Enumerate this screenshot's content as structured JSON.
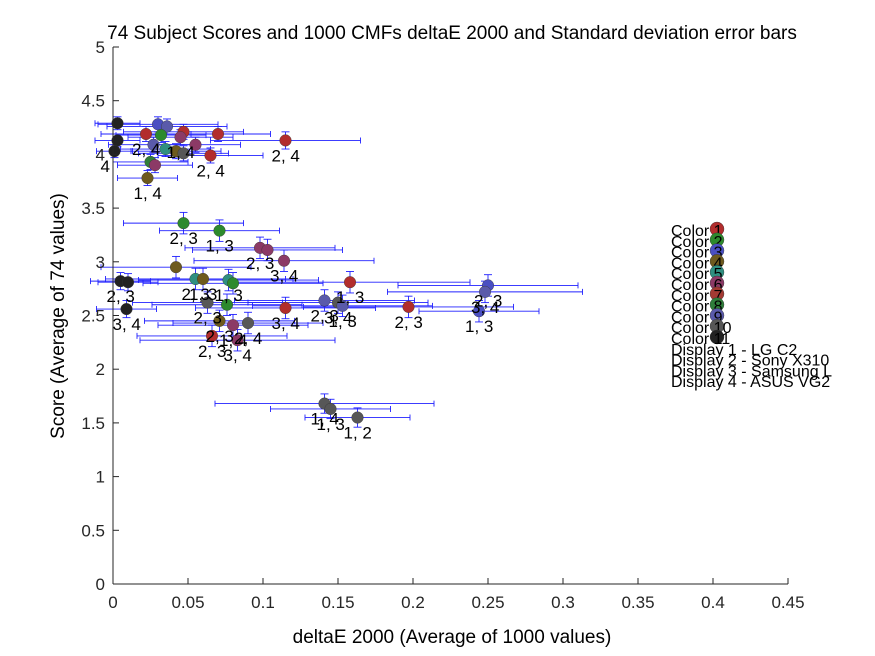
{
  "chart_data": {
    "type": "scatter",
    "title": "74 Subject Scores and 1000 CMFs deltaE 2000 and Standard deviation error bars",
    "xlabel": "deltaE 2000 (Average of 1000 values)",
    "ylabel": "Score (Average of 74 values)",
    "xlim": [
      0,
      0.45
    ],
    "ylim": [
      0,
      5
    ],
    "xticks": [
      "0",
      "0.05",
      "0.1",
      "0.15",
      "0.2",
      "0.25",
      "0.3",
      "0.35",
      "0.4",
      "0.45"
    ],
    "yticks": [
      "0",
      "0.5",
      "1",
      "1.5",
      "2",
      "2.5",
      "3",
      "3.5",
      "4",
      "4.5",
      "5"
    ],
    "grid": false,
    "legend_position": "right",
    "legend_entries": [
      {
        "label": "Color 1",
        "color": "#B22D2D"
      },
      {
        "label": "Color 2",
        "color": "#2D8A2D"
      },
      {
        "label": "Color 3",
        "color": "#4A4FC2"
      },
      {
        "label": "Color 4",
        "color": "#6E5A1E"
      },
      {
        "label": "Color 5",
        "color": "#2F8F80"
      },
      {
        "label": "Color 6",
        "color": "#8C3A66"
      },
      {
        "label": "Color 7",
        "color": "#A33A33"
      },
      {
        "label": "Color 8",
        "color": "#2F7E3A"
      },
      {
        "label": "Color 9",
        "color": "#5A5AAA"
      },
      {
        "label": "Color 10",
        "color": "#575757"
      },
      {
        "label": "Color 11",
        "color": "#222222"
      },
      {
        "label": "Display 1 - LG C2",
        "color": ""
      },
      {
        "label": "Display 2 - Sony X310",
        "color": ""
      },
      {
        "label": "Display 3 - Samsung L",
        "color": ""
      },
      {
        "label": "Display 4 - ASUS VG2",
        "color": ""
      }
    ],
    "points": [
      {
        "x": 0.022,
        "y": 4.19,
        "xerr": 0.03,
        "yerr": 0.07,
        "color": "#B22D2D",
        "label": "2, 4"
      },
      {
        "x": 0.047,
        "y": 4.21,
        "xerr": 0.04,
        "yerr": 0.07,
        "color": "#B22D2D",
        "label": ""
      },
      {
        "x": 0.07,
        "y": 4.19,
        "xerr": 0.035,
        "yerr": 0.07,
        "color": "#B22D2D",
        "label": ""
      },
      {
        "x": 0.115,
        "y": 4.13,
        "xerr": 0.05,
        "yerr": 0.08,
        "color": "#B22D2D",
        "label": "2, 4"
      },
      {
        "x": 0.065,
        "y": 3.99,
        "xerr": 0.035,
        "yerr": 0.07,
        "color": "#B22D2D",
        "label": "2, 4"
      },
      {
        "x": 0.003,
        "y": 4.29,
        "xerr": 0.015,
        "yerr": 0.06,
        "color": "#222222",
        "label": ""
      },
      {
        "x": 0.003,
        "y": 4.13,
        "xerr": 0.015,
        "yerr": 0.06,
        "color": "#222222",
        "label": ""
      },
      {
        "x": 0.001,
        "y": 4.03,
        "xerr": 0.012,
        "yerr": 0.06,
        "color": "#222222",
        "label": "4"
      },
      {
        "x": 0.03,
        "y": 4.28,
        "xerr": 0.04,
        "yerr": 0.07,
        "color": "#4A4FC2",
        "label": ""
      },
      {
        "x": 0.036,
        "y": 4.26,
        "xerr": 0.04,
        "yerr": 0.07,
        "color": "#5A5AAA",
        "label": ""
      },
      {
        "x": 0.032,
        "y": 4.18,
        "xerr": 0.03,
        "yerr": 0.07,
        "color": "#2D8A2D",
        "label": ""
      },
      {
        "x": 0.045,
        "y": 4.16,
        "xerr": 0.035,
        "yerr": 0.07,
        "color": "#8C3A66",
        "label": "1, 4"
      },
      {
        "x": 0.055,
        "y": 4.09,
        "xerr": 0.03,
        "yerr": 0.07,
        "color": "#8C3A66",
        "label": ""
      },
      {
        "x": 0.027,
        "y": 4.09,
        "xerr": 0.03,
        "yerr": 0.07,
        "color": "#5A5AAA",
        "label": ""
      },
      {
        "x": 0.035,
        "y": 4.05,
        "xerr": 0.03,
        "yerr": 0.07,
        "color": "#2F8F80",
        "label": ""
      },
      {
        "x": 0.042,
        "y": 4.03,
        "xerr": 0.03,
        "yerr": 0.07,
        "color": "#6E5A1E",
        "label": ""
      },
      {
        "x": 0.047,
        "y": 4.01,
        "xerr": 0.03,
        "yerr": 0.07,
        "color": "#575757",
        "label": ""
      },
      {
        "x": 0.025,
        "y": 3.93,
        "xerr": 0.025,
        "yerr": 0.07,
        "color": "#2F7E3A",
        "label": ""
      },
      {
        "x": 0.028,
        "y": 3.9,
        "xerr": 0.025,
        "yerr": 0.07,
        "color": "#8C3A66",
        "label": ""
      },
      {
        "x": 0.023,
        "y": 3.78,
        "xerr": 0.02,
        "yerr": 0.07,
        "color": "#6E5A1E",
        "label": "1, 4"
      },
      {
        "x": 0.047,
        "y": 3.36,
        "xerr": 0.04,
        "yerr": 0.1,
        "color": "#2D8A2D",
        "label": "2, 3"
      },
      {
        "x": 0.071,
        "y": 3.29,
        "xerr": 0.04,
        "yerr": 0.1,
        "color": "#2D8A2D",
        "label": "1, 3"
      },
      {
        "x": 0.098,
        "y": 3.13,
        "xerr": 0.05,
        "yerr": 0.1,
        "color": "#8C3A66",
        "label": "2, 3"
      },
      {
        "x": 0.103,
        "y": 3.11,
        "xerr": 0.05,
        "yerr": 0.1,
        "color": "#8C3A66",
        "label": ""
      },
      {
        "x": 0.114,
        "y": 3.01,
        "xerr": 0.06,
        "yerr": 0.1,
        "color": "#8C3A66",
        "label": "3, 4"
      },
      {
        "x": 0.042,
        "y": 2.95,
        "xerr": 0.05,
        "yerr": 0.1,
        "color": "#6E5A1E",
        "label": ""
      },
      {
        "x": 0.005,
        "y": 2.82,
        "xerr": 0.02,
        "yerr": 0.08,
        "color": "#222222",
        "label": "2, 3"
      },
      {
        "x": 0.01,
        "y": 2.81,
        "xerr": 0.02,
        "yerr": 0.08,
        "color": "#222222",
        "label": ""
      },
      {
        "x": 0.055,
        "y": 2.84,
        "xerr": 0.06,
        "yerr": 0.1,
        "color": "#2F8F80",
        "label": "2, 3"
      },
      {
        "x": 0.06,
        "y": 2.84,
        "xerr": 0.06,
        "yerr": 0.1,
        "color": "#6E5A1E",
        "label": "1, 3"
      },
      {
        "x": 0.077,
        "y": 2.83,
        "xerr": 0.06,
        "yerr": 0.1,
        "color": "#2F8F80",
        "label": "1, 3"
      },
      {
        "x": 0.08,
        "y": 2.8,
        "xerr": 0.06,
        "yerr": 0.1,
        "color": "#2D8A2D",
        "label": ""
      },
      {
        "x": 0.158,
        "y": 2.81,
        "xerr": 0.08,
        "yerr": 0.1,
        "color": "#B22D2D",
        "label": "1, 3"
      },
      {
        "x": 0.25,
        "y": 2.78,
        "xerr": 0.06,
        "yerr": 0.1,
        "color": "#4A4FC2",
        "label": "2, 3"
      },
      {
        "x": 0.248,
        "y": 2.72,
        "xerr": 0.065,
        "yerr": 0.1,
        "color": "#5A5AAA",
        "label": "3, 4"
      },
      {
        "x": 0.063,
        "y": 2.62,
        "xerr": 0.05,
        "yerr": 0.1,
        "color": "#575757",
        "label": "2, 3"
      },
      {
        "x": 0.076,
        "y": 2.6,
        "xerr": 0.05,
        "yerr": 0.1,
        "color": "#2D8A2D",
        "label": ""
      },
      {
        "x": 0.115,
        "y": 2.57,
        "xerr": 0.06,
        "yerr": 0.1,
        "color": "#B22D2D",
        "label": "3, 4"
      },
      {
        "x": 0.141,
        "y": 2.64,
        "xerr": 0.06,
        "yerr": 0.1,
        "color": "#5A5AAA",
        "label": "2, 3"
      },
      {
        "x": 0.15,
        "y": 2.62,
        "xerr": 0.06,
        "yerr": 0.1,
        "color": "#575757",
        "label": "3, 4"
      },
      {
        "x": 0.153,
        "y": 2.59,
        "xerr": 0.06,
        "yerr": 0.1,
        "color": "#5A5AAA",
        "label": "1, 3"
      },
      {
        "x": 0.197,
        "y": 2.58,
        "xerr": 0.07,
        "yerr": 0.1,
        "color": "#B22D2D",
        "label": "2, 3"
      },
      {
        "x": 0.244,
        "y": 2.54,
        "xerr": 0.04,
        "yerr": 0.1,
        "color": "#4A4FC2",
        "label": "1, 3"
      },
      {
        "x": 0.009,
        "y": 2.56,
        "xerr": 0.02,
        "yerr": 0.08,
        "color": "#222222",
        "label": "3, 4"
      },
      {
        "x": 0.071,
        "y": 2.45,
        "xerr": 0.05,
        "yerr": 0.1,
        "color": "#6E5A1E",
        "label": "2, 3"
      },
      {
        "x": 0.08,
        "y": 2.41,
        "xerr": 0.05,
        "yerr": 0.1,
        "color": "#8C3A66",
        "label": "1, 4"
      },
      {
        "x": 0.09,
        "y": 2.43,
        "xerr": 0.05,
        "yerr": 0.1,
        "color": "#575757",
        "label": "2, 4"
      },
      {
        "x": 0.066,
        "y": 2.31,
        "xerr": 0.05,
        "yerr": 0.1,
        "color": "#B22D2D",
        "label": "2, 3"
      },
      {
        "x": 0.083,
        "y": 2.27,
        "xerr": 0.065,
        "yerr": 0.1,
        "color": "#8C3A66",
        "label": "3, 4"
      },
      {
        "x": 0.141,
        "y": 1.68,
        "xerr": 0.073,
        "yerr": 0.09,
        "color": "#575757",
        "label": "1, 4"
      },
      {
        "x": 0.145,
        "y": 1.63,
        "xerr": 0.04,
        "yerr": 0.09,
        "color": "#575757",
        "label": "1, 3"
      },
      {
        "x": 0.163,
        "y": 1.55,
        "xerr": 0.035,
        "yerr": 0.09,
        "color": "#575757",
        "label": "1, 2"
      }
    ]
  }
}
